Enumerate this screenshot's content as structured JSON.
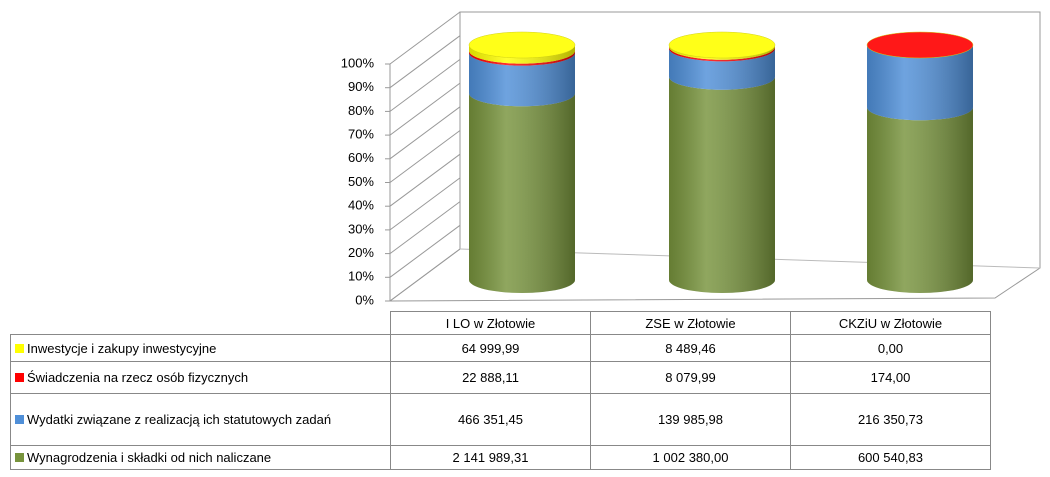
{
  "chart_data": {
    "type": "bar",
    "stacked": "percent",
    "shape": "cylinder",
    "categories": [
      "I LO w Złotowie",
      "ZSE w Złotowie",
      "CKZiU w Złotowie"
    ],
    "series": [
      {
        "name": "Inwestycje i zakupy inwestycyjne",
        "color": "#ffff00",
        "values": [
          64999.99,
          8489.46,
          0
        ],
        "value_labels": [
          "64 999,99",
          "8 489,46",
          "0,00"
        ]
      },
      {
        "name": "Świadczenia na rzecz osób fizycznych",
        "color": "#ff0000",
        "values": [
          22888.11,
          8079.99,
          174
        ],
        "value_labels": [
          "22 888,11",
          "8 079,99",
          "174,00"
        ]
      },
      {
        "name": "Wydatki związane z realizacją ich statutowych zadań",
        "color": "#4f8fd8",
        "values": [
          466351.45,
          139985.98,
          216350.73
        ],
        "value_labels": [
          "466 351,45",
          "139 985,98",
          "216 350,73"
        ]
      },
      {
        "name": "Wynagrodzenia i składki od nich naliczane",
        "color": "#77933c",
        "values": [
          2141989.31,
          1002380,
          600540.83
        ],
        "value_labels": [
          "2 141 989,31",
          "1 002 380,00",
          "600 540,83"
        ]
      }
    ],
    "ylim": [
      0,
      100
    ],
    "yticks": [
      {
        "value": 0,
        "label": "0%"
      },
      {
        "value": 10,
        "label": "10%"
      },
      {
        "value": 20,
        "label": "20%"
      },
      {
        "value": 30,
        "label": "30%"
      },
      {
        "value": 40,
        "label": "40%"
      },
      {
        "value": 50,
        "label": "50%"
      },
      {
        "value": 60,
        "label": "60%"
      },
      {
        "value": 70,
        "label": "70%"
      },
      {
        "value": 80,
        "label": "80%"
      },
      {
        "value": 90,
        "label": "90%"
      },
      {
        "value": 100,
        "label": "100%"
      }
    ],
    "grid": true,
    "legend": "table"
  }
}
